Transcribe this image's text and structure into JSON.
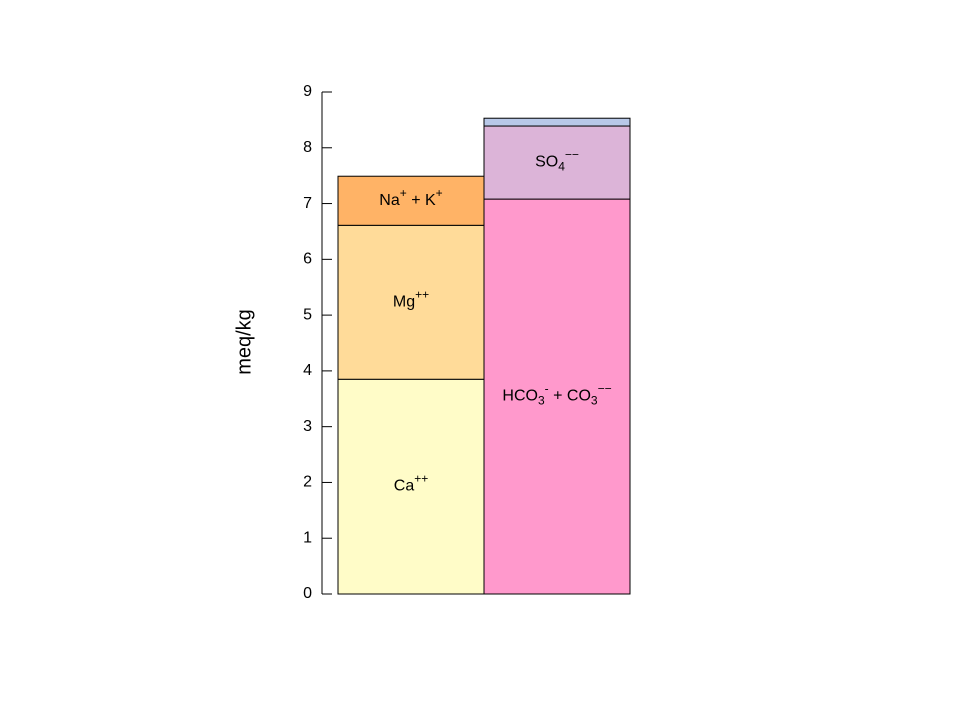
{
  "chart_data": {
    "type": "stacked-bar",
    "ylabel": "meq/kg",
    "ylim": [
      0,
      9
    ],
    "yticks": [
      0,
      1,
      2,
      3,
      4,
      5,
      6,
      7,
      8,
      9
    ],
    "columns": [
      {
        "segments": [
          {
            "label": [
              {
                "text": "Ca"
              },
              {
                "text": "++",
                "pos": "sup"
              }
            ],
            "value": 3.85,
            "color": "#fffcc8"
          },
          {
            "label": [
              {
                "text": "Mg"
              },
              {
                "text": "++",
                "pos": "sup"
              }
            ],
            "value": 2.76,
            "color": "#ffdb99"
          },
          {
            "label": [
              {
                "text": "Na"
              },
              {
                "text": "+",
                "pos": "sup"
              },
              {
                "text": " + K"
              },
              {
                "text": "+",
                "pos": "sup"
              }
            ],
            "value": 0.88,
            "color": "#ffb366"
          }
        ]
      },
      {
        "segments": [
          {
            "label": [
              {
                "text": "HCO"
              },
              {
                "text": "3",
                "pos": "sub"
              },
              {
                "text": "-",
                "pos": "sup"
              },
              {
                "text": " + CO"
              },
              {
                "text": "3",
                "pos": "sub"
              },
              {
                "text": "−−",
                "pos": "sup"
              }
            ],
            "value": 7.08,
            "color": "#ff99cc"
          },
          {
            "label": [
              {
                "text": "SO"
              },
              {
                "text": "4",
                "pos": "sub"
              },
              {
                "text": "−−",
                "pos": "sup"
              }
            ],
            "value": 1.31,
            "color": "#dcb4d8"
          },
          {
            "value": 0.14,
            "color": "#b8c8e8"
          }
        ]
      }
    ]
  }
}
